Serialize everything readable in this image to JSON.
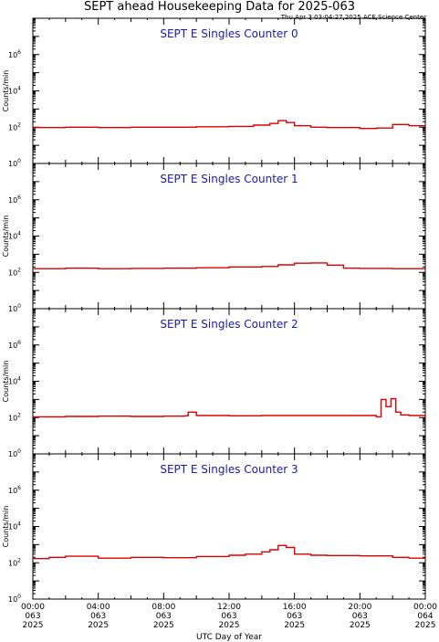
{
  "header": {
    "title": "SEPT ahead Housekeeping Data for 2025-063",
    "timestamp": "Thu Apr  3 03:04:27 2025 ACE Science Center"
  },
  "colors": {
    "trace": "#dd0000",
    "panel_title": "#1a1aaa",
    "axes": "#000000"
  },
  "x_axis": {
    "label": "UTC Day of Year",
    "ticks": [
      {
        "t": 0,
        "time": "00:00",
        "doy": "063",
        "year": "2025"
      },
      {
        "t": 4,
        "time": "04:00",
        "doy": "063",
        "year": "2025"
      },
      {
        "t": 8,
        "time": "08:00",
        "doy": "063",
        "year": "2025"
      },
      {
        "t": 12,
        "time": "12:00",
        "doy": "063",
        "year": "2025"
      },
      {
        "t": 16,
        "time": "16:00",
        "doy": "063",
        "year": "2025"
      },
      {
        "t": 20,
        "time": "20:00",
        "doy": "063",
        "year": "2025"
      },
      {
        "t": 24,
        "time": "00:00",
        "doy": "064",
        "year": "2025"
      }
    ],
    "range_hours": [
      0,
      24
    ]
  },
  "y_axis": {
    "label": "Counts/min",
    "scale": "log",
    "range": [
      1,
      100000000
    ],
    "tick_labels": [
      {
        "exp": 0,
        "base": "10",
        "sup": "0"
      },
      {
        "exp": 2,
        "base": "10",
        "sup": "2"
      },
      {
        "exp": 4,
        "base": "10",
        "sup": "4"
      },
      {
        "exp": 6,
        "base": "10",
        "sup": "6"
      }
    ]
  },
  "chart_data": [
    {
      "type": "line",
      "title": "SEPT E Singles Counter 0",
      "x": [
        0,
        2,
        4,
        6,
        8,
        10,
        12,
        13.5,
        14.5,
        15,
        15.5,
        16,
        17,
        18,
        20,
        21,
        22,
        23,
        24
      ],
      "y": [
        95,
        100,
        95,
        100,
        100,
        105,
        110,
        130,
        160,
        230,
        180,
        120,
        100,
        95,
        85,
        90,
        140,
        120,
        110
      ],
      "ylim": [
        1,
        100000000
      ]
    },
    {
      "type": "line",
      "title": "SEPT E Singles Counter 1",
      "x": [
        0,
        2,
        4,
        6,
        8,
        10,
        12,
        14,
        15,
        16,
        17,
        18,
        19,
        20,
        22,
        24
      ],
      "y": [
        160,
        170,
        160,
        165,
        170,
        180,
        200,
        210,
        260,
        320,
        330,
        250,
        170,
        165,
        160,
        170
      ],
      "ylim": [
        1,
        100000000
      ]
    },
    {
      "type": "line",
      "title": "SEPT E Singles Counter 2",
      "x": [
        0,
        2,
        4,
        6,
        8,
        9.3,
        9.5,
        10,
        12,
        14,
        16,
        18,
        20,
        21,
        21.3,
        21.6,
        21.9,
        22.2,
        22.5,
        23,
        24
      ],
      "y": [
        110,
        115,
        120,
        115,
        120,
        125,
        200,
        130,
        125,
        130,
        130,
        130,
        130,
        110,
        1000,
        400,
        1100,
        200,
        140,
        130,
        120
      ],
      "ylim": [
        1,
        100000000
      ]
    },
    {
      "type": "line",
      "title": "SEPT E Singles Counter 3",
      "x": [
        0,
        1,
        2,
        4,
        6,
        8,
        10,
        12,
        13,
        14,
        14.5,
        15,
        15.5,
        16,
        17,
        18,
        20,
        22,
        23,
        24
      ],
      "y": [
        170,
        200,
        230,
        180,
        200,
        190,
        220,
        260,
        300,
        400,
        520,
        900,
        700,
        300,
        260,
        250,
        240,
        200,
        180,
        160
      ],
      "ylim": [
        1,
        100000000
      ]
    }
  ]
}
